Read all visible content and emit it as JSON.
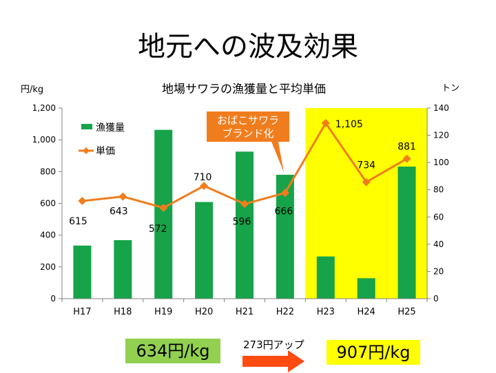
{
  "slide": {
    "title": "地元への波及効果"
  },
  "chart_data": {
    "type": "bar+line",
    "title": "地場サワラの漁獲量と平均単価",
    "categories": [
      "H17",
      "H18",
      "H19",
      "H20",
      "H21",
      "H22",
      "H23",
      "H24",
      "H25"
    ],
    "series": [
      {
        "name": "漁獲量",
        "type": "bar",
        "axis": "right",
        "color": "#16a349",
        "values": [
          39,
          43,
          124,
          71,
          108,
          91,
          31,
          15,
          97
        ]
      },
      {
        "name": "単価",
        "type": "line",
        "axis": "left",
        "color": "#f07d1d",
        "values": [
          615,
          643,
          572,
          710,
          596,
          666,
          1105,
          734,
          881
        ],
        "labels": [
          "615",
          "643",
          "572",
          "710",
          "596",
          "666",
          "1,105",
          "734",
          "881"
        ]
      }
    ],
    "left_axis": {
      "unit": "円/kg",
      "range": [
        0,
        1200
      ],
      "ticks": [
        "0",
        "200",
        "400",
        "600",
        "800",
        "1,000",
        "1,200"
      ]
    },
    "right_axis": {
      "unit": "トン",
      "range": [
        0,
        140
      ],
      "ticks": [
        "0",
        "20",
        "40",
        "60",
        "80",
        "100",
        "120",
        "140"
      ]
    },
    "legend": {
      "position": "top-left"
    },
    "grid": false,
    "highlight": {
      "categories": [
        "H23",
        "H24",
        "H25"
      ],
      "color": "#ffff00"
    },
    "callout": {
      "lines": [
        "おばこサワラ",
        "ブランド化"
      ],
      "target": "H22",
      "color": "#f07d1d"
    }
  },
  "summary": {
    "before_value": "634円/kg",
    "increase_label": "273円アップ",
    "after_value": "907円/kg",
    "arrow_color": "#ff4a10"
  }
}
